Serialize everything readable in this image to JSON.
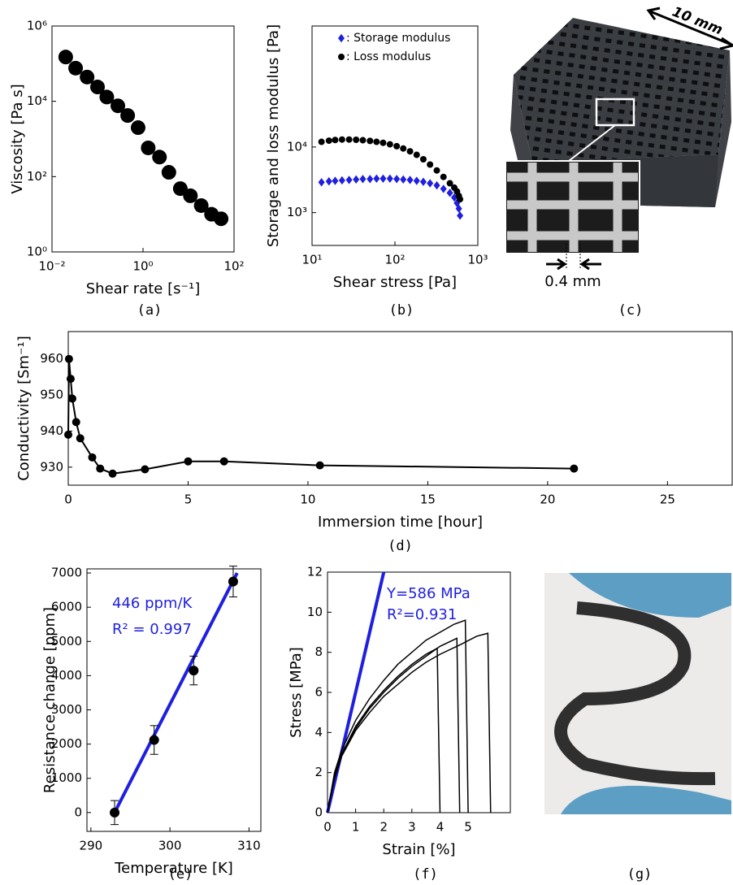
{
  "chart_data": [
    {
      "type": "scatter",
      "label": "(a)",
      "xlabel": "Shear rate [s⁻¹]",
      "ylabel": "Viscosity [Pa s]",
      "xscale": "log",
      "yscale": "log",
      "xlim": [
        0.01,
        100
      ],
      "ylim": [
        1,
        1000000
      ],
      "xticks": [
        {
          "value": 0.01,
          "label": "10⁻²"
        },
        {
          "value": 1,
          "label": "10⁰"
        },
        {
          "value": 100,
          "label": "10²"
        }
      ],
      "yticks": [
        {
          "value": 1,
          "label": "10⁰"
        },
        {
          "value": 100,
          "label": "10²"
        },
        {
          "value": 10000,
          "label": "10⁴"
        },
        {
          "value": 1000000,
          "label": "10⁶"
        }
      ],
      "x": [
        0.02,
        0.033,
        0.059,
        0.1,
        0.16,
        0.28,
        0.46,
        0.78,
        1.3,
        2.3,
        3.7,
        6.6,
        11,
        19,
        32,
        52
      ],
      "values": [
        150000,
        76000,
        44000,
        24000,
        13000,
        7600,
        4200,
        2000,
        580,
        330,
        130,
        48,
        31,
        17,
        10,
        7.6
      ],
      "color": "#000000"
    },
    {
      "type": "scatter",
      "label": "(b)",
      "xlabel": "Shear stress [Pa]",
      "ylabel": "Storage and loss modulus [Pa]",
      "xscale": "log",
      "yscale": "log",
      "xlim": [
        10,
        1000
      ],
      "ylim": [
        316,
        700000
      ],
      "xticks": [
        {
          "value": 10,
          "label": "10¹"
        },
        {
          "value": 100,
          "label": "10²"
        },
        {
          "value": 1000,
          "label": "10³"
        }
      ],
      "yticks": [
        {
          "value": 1000,
          "label": "10³"
        },
        {
          "value": 10000,
          "label": "10⁴"
        }
      ],
      "legend": "upper left",
      "x": [
        13,
        16,
        19,
        23,
        28,
        34,
        41,
        50,
        60,
        72,
        87,
        105,
        126,
        152,
        183,
        220,
        265,
        320,
        385,
        460,
        520,
        560,
        590,
        610
      ],
      "series": [
        {
          "name": ": Storage modulus",
          "color": "#1f1fe0",
          "marker": "diamond",
          "values": [
            2900,
            3000,
            3050,
            3100,
            3150,
            3200,
            3250,
            3250,
            3300,
            3300,
            3300,
            3250,
            3200,
            3150,
            3050,
            2950,
            2800,
            2600,
            2300,
            2000,
            1700,
            1400,
            1150,
            900
          ]
        },
        {
          "name": ": Loss modulus",
          "color": "#000000",
          "marker": "circle",
          "values": [
            12000,
            12500,
            12800,
            13000,
            13000,
            12900,
            12700,
            12400,
            12000,
            11600,
            11000,
            10300,
            9500,
            8600,
            7600,
            6500,
            5400,
            4400,
            3500,
            2800,
            2400,
            2100,
            1800,
            1600
          ]
        }
      ]
    },
    {
      "type": "line",
      "label": "(d)",
      "xlabel": "Immersion time [hour]",
      "ylabel": "Conductivity [Sm⁻¹]",
      "xlim": [
        0,
        27.7
      ],
      "ylim": [
        925,
        967.6
      ],
      "xticks": [
        0,
        5,
        10,
        15,
        20,
        25
      ],
      "yticks": [
        930,
        940,
        950,
        960
      ],
      "x": [
        0,
        0.03,
        0.1,
        0.17,
        0.33,
        0.5,
        1.0,
        1.33,
        1.85,
        3.2,
        5.0,
        6.5,
        10.5,
        21.1
      ],
      "values": [
        939,
        960,
        954.5,
        949,
        942.5,
        938,
        932.7,
        929.6,
        928.2,
        929.4,
        931.6,
        931.6,
        930.5,
        929.6
      ],
      "color": "#000000"
    },
    {
      "type": "scatter",
      "label": "(e)",
      "xlabel": "Temperature [K]",
      "ylabel": "Resistance change [ppm]",
      "xlim": [
        289.5,
        311.5
      ],
      "ylim": [
        -550,
        7120
      ],
      "xticks": [
        290,
        300,
        310
      ],
      "yticks": [
        0,
        1000,
        2000,
        3000,
        4000,
        5000,
        6000,
        7000
      ],
      "x": [
        293,
        298,
        303,
        308
      ],
      "values": [
        0,
        2120,
        4150,
        6750
      ],
      "errors": [
        350,
        420,
        420,
        450
      ],
      "color": "#000000",
      "fit": {
        "x": [
          293,
          308.5
        ],
        "values": [
          0,
          7000
        ],
        "color": "#1f1fe0"
      },
      "annotations": [
        {
          "text": "446 ppm/K",
          "color": "#1f1fe0"
        },
        {
          "text": "R² = 0.997",
          "color": "#1f1fe0"
        }
      ]
    },
    {
      "type": "line",
      "label": "(f)",
      "xlabel": "Strain [%]",
      "ylabel": "Stress [MPa]",
      "xlim": [
        0,
        6.5
      ],
      "ylim": [
        0,
        12
      ],
      "xticks": [
        0,
        1,
        2,
        3,
        4,
        5
      ],
      "yticks": [
        0,
        2,
        4,
        6,
        8,
        10,
        12
      ],
      "series": [
        {
          "color": "#000000",
          "x": [
            0,
            0.25,
            0.5,
            1,
            1.5,
            2,
            2.5,
            3,
            3.5,
            3.9,
            4.0
          ],
          "values": [
            0,
            1.8,
            2.9,
            4.3,
            5.3,
            6.1,
            6.8,
            7.4,
            7.9,
            8.2,
            0
          ]
        },
        {
          "color": "#000000",
          "x": [
            0,
            0.25,
            0.5,
            1,
            1.5,
            2,
            2.5,
            3,
            3.5,
            4.0,
            4.6,
            4.7
          ],
          "values": [
            0,
            1.8,
            2.9,
            4.2,
            5.2,
            6.0,
            6.7,
            7.3,
            7.8,
            8.3,
            8.7,
            0
          ]
        },
        {
          "color": "#000000",
          "x": [
            0,
            0.25,
            0.5,
            1,
            1.5,
            2,
            2.5,
            3,
            3.5,
            4.0,
            4.5,
            4.9,
            5.0
          ],
          "values": [
            0,
            2.0,
            3.1,
            4.6,
            5.7,
            6.6,
            7.4,
            8.0,
            8.6,
            9.0,
            9.4,
            9.6,
            0
          ]
        },
        {
          "color": "#000000",
          "x": [
            0,
            0.25,
            0.5,
            1,
            1.5,
            2,
            2.5,
            3,
            3.5,
            4.0,
            4.75,
            5.3,
            5.7,
            5.8
          ],
          "values": [
            0,
            1.7,
            2.8,
            4.1,
            5.0,
            5.8,
            6.4,
            7.0,
            7.5,
            7.9,
            8.4,
            8.8,
            8.95,
            0
          ]
        }
      ],
      "fit": {
        "x": [
          0,
          2
        ],
        "values": [
          0,
          12
        ],
        "color": "#1f1fe0"
      },
      "annotations": [
        {
          "text": "Y=586 MPa",
          "color": "#1f1fe0"
        },
        {
          "text": "R²=0.931",
          "color": "#1f1fe0"
        }
      ]
    }
  ],
  "photos": {
    "c": {
      "dimension": "10 mm",
      "spacing": "0.4 mm",
      "label": "(c)"
    },
    "g": {
      "label": "(g)"
    }
  }
}
